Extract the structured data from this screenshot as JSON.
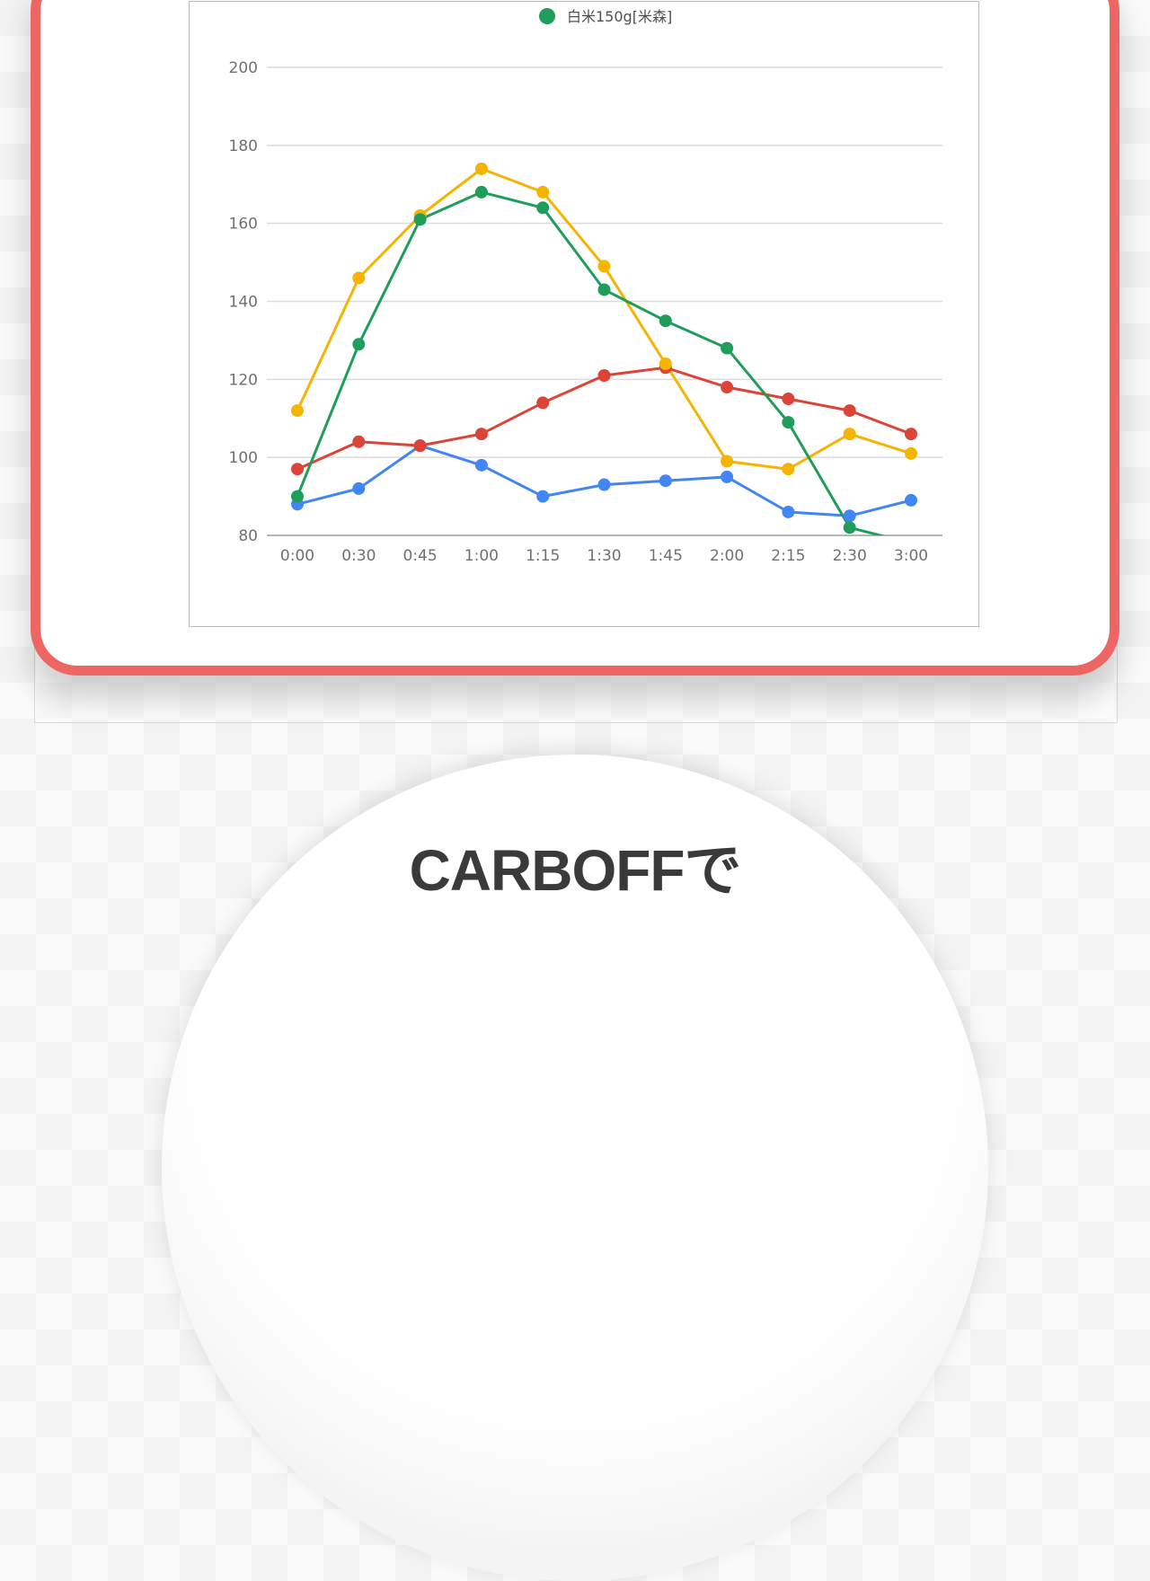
{
  "headline": "CARBOFFで",
  "chart_data": {
    "type": "line",
    "x": [
      "0:00",
      "0:30",
      "0:45",
      "1:00",
      "1:15",
      "1:30",
      "1:45",
      "2:00",
      "2:15",
      "2:30",
      "3:00"
    ],
    "ylim": [
      80,
      200
    ],
    "yticks": [
      "80",
      "100",
      "120",
      "140",
      "160",
      "180",
      "200"
    ],
    "grid": true,
    "legend_position": "top-center",
    "series": [
      {
        "name": "",
        "color": "#4285f4",
        "values": [
          88,
          92,
          103,
          98,
          90,
          93,
          94,
          95,
          86,
          85,
          89
        ]
      },
      {
        "name": "",
        "color": "#db4437",
        "values": [
          97,
          104,
          103,
          106,
          114,
          121,
          123,
          118,
          115,
          112,
          106
        ]
      },
      {
        "name": "",
        "color": "#f4b400",
        "values": [
          112,
          146,
          162,
          174,
          168,
          149,
          124,
          99,
          97,
          106,
          101
        ]
      },
      {
        "name": "白米150g[米森]",
        "color": "#1e9e5a",
        "values": [
          90,
          129,
          161,
          168,
          164,
          143,
          135,
          128,
          109,
          82,
          78
        ]
      }
    ]
  }
}
